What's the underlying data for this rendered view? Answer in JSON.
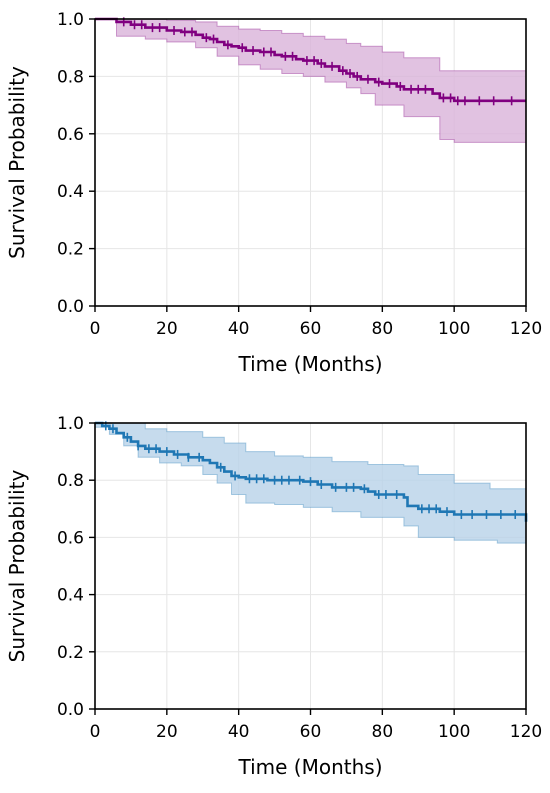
{
  "chart_data": [
    {
      "type": "line",
      "subtype": "kaplan-meier",
      "title": "",
      "xlabel": "Time (Months)",
      "ylabel": "Survival Probability",
      "xlim": [
        0,
        120
      ],
      "ylim": [
        0,
        1.0
      ],
      "xticks": [
        "0",
        "20",
        "40",
        "60",
        "80",
        "100",
        "120"
      ],
      "yticks": [
        "0.0",
        "0.2",
        "0.4",
        "0.6",
        "0.8",
        "1.0"
      ],
      "grid": true,
      "color": "#800080",
      "ci_fill": "#d9b3d9",
      "survival": [
        [
          0,
          1.0
        ],
        [
          6,
          0.99
        ],
        [
          10,
          0.98
        ],
        [
          14,
          0.97
        ],
        [
          20,
          0.96
        ],
        [
          24,
          0.955
        ],
        [
          28,
          0.945
        ],
        [
          30,
          0.935
        ],
        [
          32,
          0.93
        ],
        [
          34,
          0.92
        ],
        [
          36,
          0.91
        ],
        [
          38,
          0.905
        ],
        [
          40,
          0.9
        ],
        [
          42,
          0.89
        ],
        [
          46,
          0.885
        ],
        [
          50,
          0.875
        ],
        [
          52,
          0.87
        ],
        [
          56,
          0.86
        ],
        [
          58,
          0.855
        ],
        [
          62,
          0.845
        ],
        [
          64,
          0.835
        ],
        [
          68,
          0.82
        ],
        [
          70,
          0.81
        ],
        [
          72,
          0.8
        ],
        [
          74,
          0.79
        ],
        [
          78,
          0.78
        ],
        [
          80,
          0.775
        ],
        [
          84,
          0.765
        ],
        [
          86,
          0.755
        ],
        [
          94,
          0.74
        ],
        [
          96,
          0.725
        ],
        [
          100,
          0.715
        ],
        [
          120,
          0.715
        ]
      ],
      "ci_upper": [
        [
          0,
          1.0
        ],
        [
          6,
          1.0
        ],
        [
          10,
          1.0
        ],
        [
          20,
          0.995
        ],
        [
          28,
          0.99
        ],
        [
          34,
          0.975
        ],
        [
          40,
          0.965
        ],
        [
          46,
          0.96
        ],
        [
          52,
          0.95
        ],
        [
          58,
          0.94
        ],
        [
          64,
          0.93
        ],
        [
          70,
          0.915
        ],
        [
          74,
          0.905
        ],
        [
          80,
          0.885
        ],
        [
          86,
          0.865
        ],
        [
          96,
          0.82
        ],
        [
          120,
          0.82
        ]
      ],
      "ci_lower": [
        [
          0,
          1.0
        ],
        [
          6,
          0.94
        ],
        [
          10,
          0.94
        ],
        [
          14,
          0.93
        ],
        [
          20,
          0.92
        ],
        [
          28,
          0.9
        ],
        [
          34,
          0.87
        ],
        [
          40,
          0.84
        ],
        [
          46,
          0.825
        ],
        [
          52,
          0.81
        ],
        [
          58,
          0.8
        ],
        [
          64,
          0.78
        ],
        [
          70,
          0.76
        ],
        [
          74,
          0.74
        ],
        [
          78,
          0.7
        ],
        [
          86,
          0.66
        ],
        [
          96,
          0.58
        ],
        [
          100,
          0.57
        ],
        [
          120,
          0.57
        ]
      ],
      "censored_times": [
        8,
        11,
        13,
        16,
        18,
        22,
        25,
        27,
        31,
        33,
        37,
        41,
        44,
        47,
        49,
        53,
        55,
        59,
        61,
        63,
        66,
        69,
        71,
        73,
        76,
        79,
        82,
        85,
        88,
        90,
        92,
        97,
        99,
        101,
        103,
        107,
        111,
        116
      ]
    },
    {
      "type": "line",
      "subtype": "kaplan-meier",
      "title": "",
      "xlabel": "Time (Months)",
      "ylabel": "Survival Probability",
      "xlim": [
        0,
        120
      ],
      "ylim": [
        0,
        1.0
      ],
      "xticks": [
        "0",
        "20",
        "40",
        "60",
        "80",
        "100",
        "120"
      ],
      "yticks": [
        "0.0",
        "0.2",
        "0.4",
        "0.6",
        "0.8",
        "1.0"
      ],
      "grid": true,
      "color": "#1f77b4",
      "ci_fill": "#b8d2e8",
      "survival": [
        [
          0,
          1.0
        ],
        [
          2,
          0.99
        ],
        [
          4,
          0.98
        ],
        [
          6,
          0.965
        ],
        [
          8,
          0.95
        ],
        [
          10,
          0.935
        ],
        [
          12,
          0.92
        ],
        [
          14,
          0.91
        ],
        [
          18,
          0.9
        ],
        [
          22,
          0.89
        ],
        [
          26,
          0.88
        ],
        [
          30,
          0.87
        ],
        [
          32,
          0.86
        ],
        [
          34,
          0.845
        ],
        [
          36,
          0.83
        ],
        [
          38,
          0.815
        ],
        [
          40,
          0.81
        ],
        [
          42,
          0.805
        ],
        [
          48,
          0.8
        ],
        [
          58,
          0.795
        ],
        [
          62,
          0.785
        ],
        [
          66,
          0.775
        ],
        [
          74,
          0.77
        ],
        [
          76,
          0.76
        ],
        [
          78,
          0.75
        ],
        [
          86,
          0.74
        ],
        [
          87,
          0.71
        ],
        [
          90,
          0.7
        ],
        [
          96,
          0.69
        ],
        [
          100,
          0.68
        ],
        [
          119,
          0.68
        ],
        [
          120,
          0.655
        ]
      ],
      "ci_upper": [
        [
          0,
          1.0
        ],
        [
          8,
          1.0
        ],
        [
          14,
          0.98
        ],
        [
          20,
          0.97
        ],
        [
          30,
          0.95
        ],
        [
          36,
          0.93
        ],
        [
          42,
          0.9
        ],
        [
          50,
          0.885
        ],
        [
          58,
          0.88
        ],
        [
          66,
          0.865
        ],
        [
          76,
          0.855
        ],
        [
          86,
          0.85
        ],
        [
          90,
          0.82
        ],
        [
          100,
          0.79
        ],
        [
          110,
          0.77
        ],
        [
          120,
          0.76
        ]
      ],
      "ci_lower": [
        [
          0,
          0.985
        ],
        [
          4,
          0.96
        ],
        [
          8,
          0.92
        ],
        [
          12,
          0.88
        ],
        [
          18,
          0.86
        ],
        [
          24,
          0.85
        ],
        [
          30,
          0.82
        ],
        [
          34,
          0.79
        ],
        [
          38,
          0.75
        ],
        [
          42,
          0.72
        ],
        [
          50,
          0.715
        ],
        [
          58,
          0.705
        ],
        [
          66,
          0.69
        ],
        [
          74,
          0.67
        ],
        [
          86,
          0.64
        ],
        [
          90,
          0.6
        ],
        [
          100,
          0.59
        ],
        [
          112,
          0.58
        ],
        [
          120,
          0.54
        ]
      ],
      "censored_times": [
        3,
        5,
        9,
        12,
        15,
        17,
        20,
        23,
        26,
        29,
        35,
        39,
        43,
        45,
        47,
        50,
        52,
        54,
        57,
        60,
        63,
        67,
        70,
        72,
        75,
        79,
        81,
        84,
        91,
        93,
        95,
        98,
        102,
        105,
        109,
        113,
        117
      ]
    }
  ]
}
